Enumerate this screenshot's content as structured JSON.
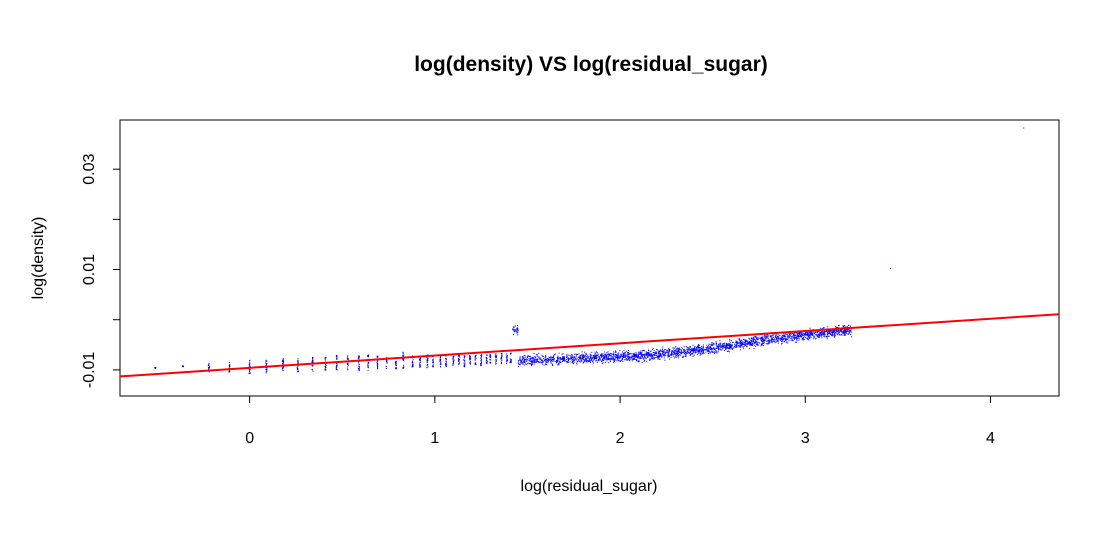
{
  "chart_data": {
    "type": "scatter",
    "title": "log(density) VS log(residual_sugar)",
    "xlabel": "log(residual_sugar)",
    "ylabel": "log(density)",
    "xlim": [
      -0.7,
      4.37
    ],
    "ylim": [
      -0.0152,
      0.0398
    ],
    "x_ticks": [
      0,
      1,
      2,
      3,
      4
    ],
    "x_tick_labels": [
      "0",
      "1",
      "2",
      "3",
      "4"
    ],
    "y_ticks": [
      -0.01,
      0.0,
      0.01,
      0.02,
      0.03
    ],
    "y_tick_labels": [
      "-0.01",
      "",
      "0.01",
      "",
      "0.03"
    ],
    "grid": false,
    "point_color": "#0000ff",
    "line_color": "#ff0000",
    "fit_line": {
      "x": [
        -0.7,
        4.37
      ],
      "y": [
        -0.0113,
        0.0011
      ]
    },
    "series": [
      {
        "type": "vertical_clusters",
        "points_x": [
          -0.51,
          -0.36,
          -0.22,
          -0.11,
          0.0,
          0.09,
          0.18,
          0.26,
          0.34,
          0.41,
          0.47,
          0.53,
          0.59,
          0.64,
          0.69,
          0.74,
          0.79,
          0.83,
          0.88,
          0.92,
          0.96,
          0.99,
          1.03,
          1.06,
          1.1,
          1.13,
          1.16,
          1.19,
          1.22,
          1.25,
          1.28,
          1.3,
          1.33,
          1.36,
          1.39,
          1.41
        ],
        "y_ranges": [
          [
            -0.0097,
            -0.0095
          ],
          [
            -0.0094,
            -0.0092
          ],
          [
            -0.0104,
            -0.0085
          ],
          [
            -0.0105,
            -0.0085
          ],
          [
            -0.011,
            -0.008
          ],
          [
            -0.0107,
            -0.008
          ],
          [
            -0.0102,
            -0.0075
          ],
          [
            -0.0105,
            -0.0077
          ],
          [
            -0.0103,
            -0.0075
          ],
          [
            -0.0101,
            -0.0073
          ],
          [
            -0.0104,
            -0.007
          ],
          [
            -0.01,
            -0.0071
          ],
          [
            -0.0104,
            -0.0069
          ],
          [
            -0.0101,
            -0.007
          ],
          [
            -0.01,
            -0.0072
          ],
          [
            -0.0099,
            -0.0075
          ],
          [
            -0.0098,
            -0.0073
          ],
          [
            -0.0097,
            -0.0061
          ],
          [
            -0.0096,
            -0.0072
          ],
          [
            -0.0095,
            -0.0072
          ],
          [
            -0.0096,
            -0.007
          ],
          [
            -0.0095,
            -0.0072
          ],
          [
            -0.0094,
            -0.0071
          ],
          [
            -0.0093,
            -0.007
          ],
          [
            -0.0092,
            -0.0072
          ],
          [
            -0.0091,
            -0.007
          ],
          [
            -0.0094,
            -0.0071
          ],
          [
            -0.009,
            -0.007
          ],
          [
            -0.009,
            -0.0069
          ],
          [
            -0.0092,
            -0.0068
          ],
          [
            -0.0089,
            -0.007
          ],
          [
            -0.0088,
            -0.0069
          ],
          [
            -0.009,
            -0.0068
          ],
          [
            -0.0088,
            -0.0067
          ],
          [
            -0.0087,
            -0.0068
          ],
          [
            -0.0088,
            -0.0066
          ]
        ]
      },
      {
        "type": "dense_cloud",
        "x_range": [
          1.42,
          3.25
        ],
        "y_center_at_x": [
          [
            1.45,
            -0.0082
          ],
          [
            1.8,
            -0.0077
          ],
          [
            2.1,
            -0.0072
          ],
          [
            2.4,
            -0.0062
          ],
          [
            2.7,
            -0.0045
          ],
          [
            3.0,
            -0.003
          ],
          [
            3.25,
            -0.002
          ]
        ],
        "y_spread": 0.0015
      },
      {
        "type": "outliers",
        "x": [
          3.46,
          4.18,
          3.25
        ],
        "y": [
          0.0102,
          0.0382,
          -0.0034
        ]
      }
    ]
  }
}
